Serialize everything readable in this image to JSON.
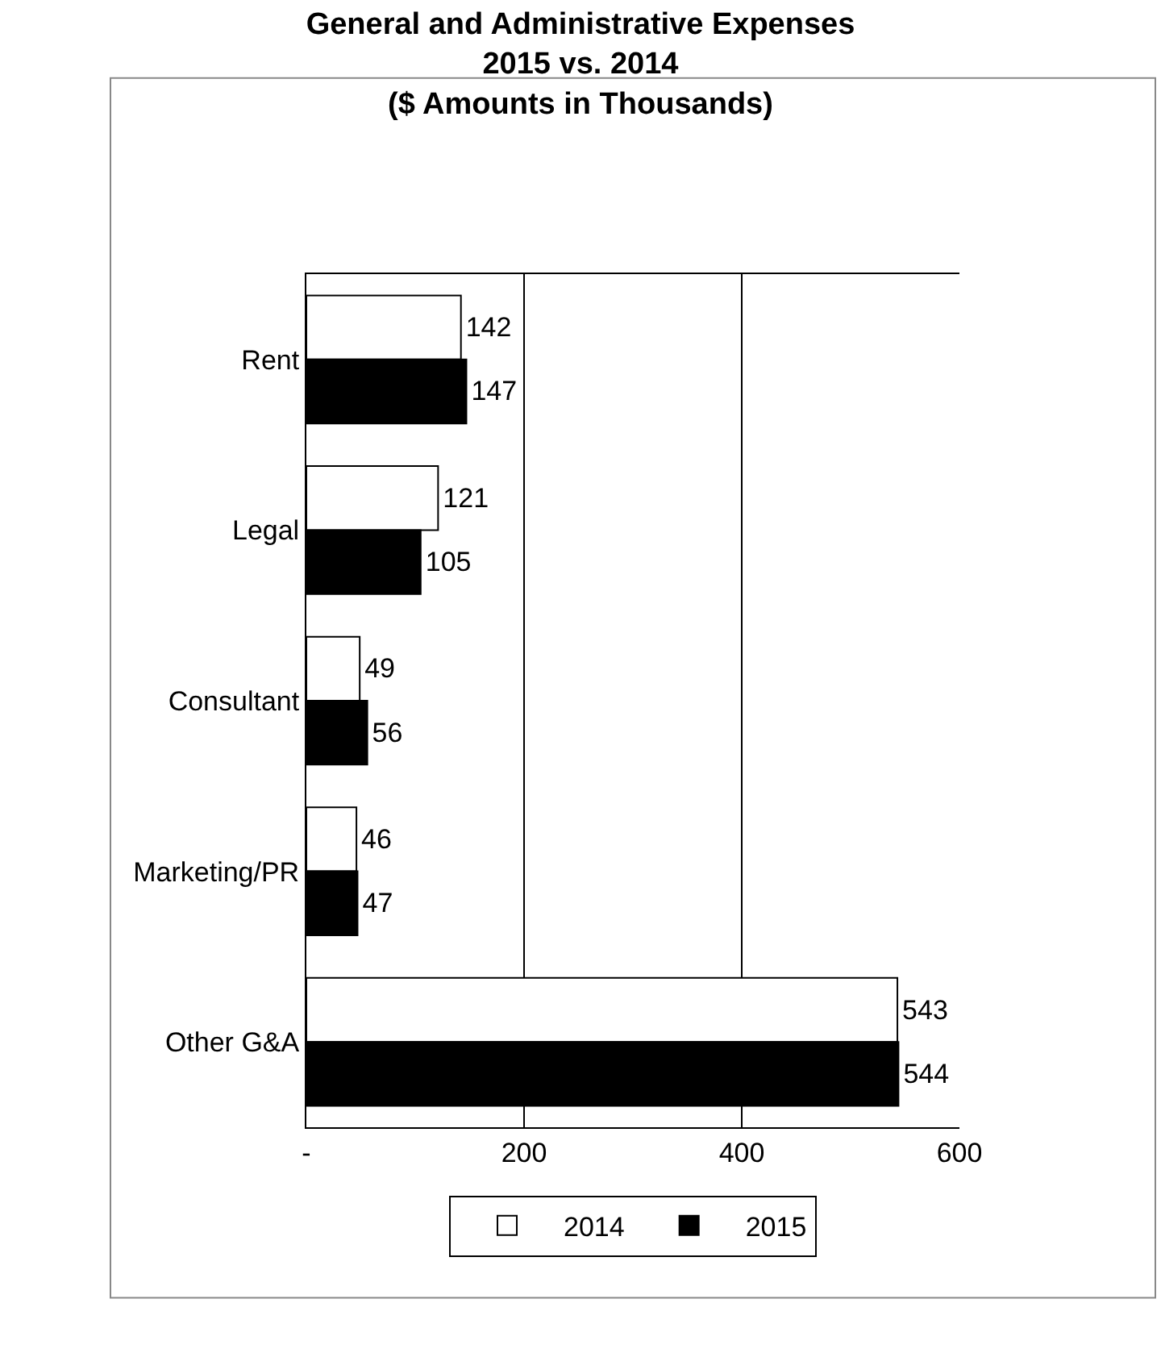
{
  "chart_data": {
    "type": "bar",
    "orientation": "horizontal",
    "title": "General and Administrative Expenses\n2015 vs. 2014\n($ Amounts in Thousands)",
    "categories": [
      "Rent",
      "Legal",
      "Consultant",
      "Marketing/PR",
      "Other G&A"
    ],
    "series": [
      {
        "name": "2014",
        "color": "#ffffff",
        "values": [
          142,
          121,
          49,
          46,
          543
        ]
      },
      {
        "name": "2015",
        "color": "#000000",
        "values": [
          147,
          105,
          56,
          47,
          544
        ]
      }
    ],
    "xlim": [
      0,
      600
    ],
    "xticks": [
      {
        "value": 0,
        "label": "-"
      },
      200,
      400,
      600
    ],
    "grid": "x",
    "legend": "bottom",
    "data_labels": true
  }
}
